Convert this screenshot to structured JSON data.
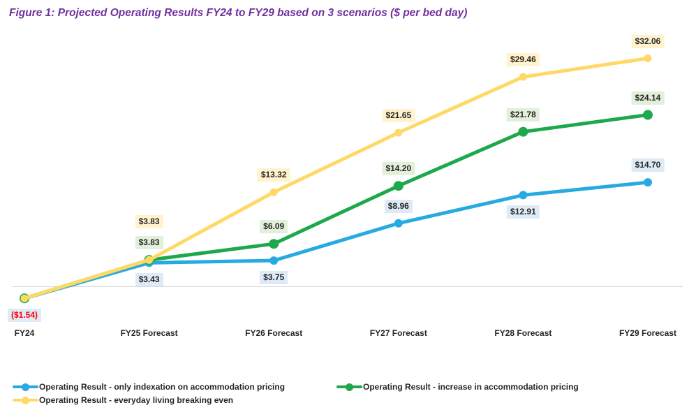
{
  "figure": {
    "title": "Figure 1: Projected Operating Results FY24 to FY29 based on 3 scenarios ($ per bed day)"
  },
  "chart_data": {
    "type": "line",
    "title": "Figure 1: Projected Operating Results FY24 to FY29 based on 3 scenarios ($ per bed day)",
    "xlabel": "",
    "ylabel": "",
    "unit": "$ per bed day",
    "categories": [
      "FY24",
      "FY25 Forecast",
      "FY26 Forecast",
      "FY27 Forecast",
      "FY28 Forecast",
      "FY29 Forecast"
    ],
    "series": [
      {
        "name": "Operating Result - only indexation on accommodation pricing",
        "color": "#27AAE1",
        "label_bg": "#DEEBF7",
        "values": [
          -1.54,
          3.43,
          3.75,
          8.96,
          12.91,
          14.7
        ],
        "labels": [
          "($1.54)",
          "$3.43",
          "$3.75",
          "$8.96",
          "$12.91",
          "$14.70"
        ],
        "label_positions": [
          "below",
          "below",
          "below",
          "above",
          "below",
          "above"
        ]
      },
      {
        "name": "Operating Result - increase in accommodation pricing",
        "color": "#1EA84C",
        "label_bg": "#E2EFDA",
        "values": [
          -1.54,
          3.83,
          6.09,
          14.2,
          21.78,
          24.14
        ],
        "labels": [
          null,
          "$3.83",
          "$6.09",
          "$14.20",
          "$21.78",
          "$24.14"
        ],
        "label_positions": [
          null,
          "above",
          "above",
          "above",
          "above",
          "above"
        ]
      },
      {
        "name": "Operating Result - everyday living breaking even",
        "color": "#FFD966",
        "label_bg": "#FFF2CC",
        "values": [
          -1.54,
          3.83,
          13.32,
          21.65,
          29.46,
          32.06
        ],
        "labels": [
          null,
          "$3.83",
          "$13.32",
          "$21.65",
          "$29.46",
          "$32.06"
        ],
        "label_positions": [
          null,
          "above-high",
          "above",
          "above",
          "above",
          "above"
        ]
      }
    ],
    "ylim": [
      -5,
      35
    ],
    "grid": false,
    "zero_baseline": true,
    "legend_position": "bottom",
    "legend_columns": 2
  },
  "colors": {
    "title": "#7030A0",
    "axis_text": "#262626",
    "label_text": "#262626",
    "negative_label": "#FF0000",
    "gridline": "#D9D9D9",
    "background": "#FFFFFF"
  }
}
